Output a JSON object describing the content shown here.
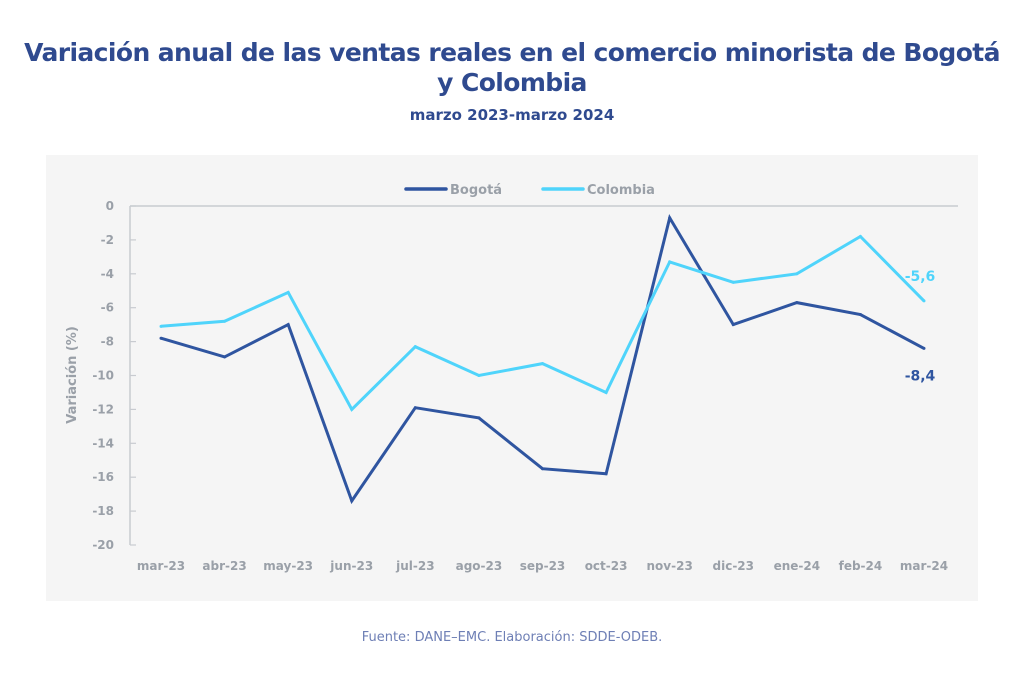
{
  "chart_data": {
    "type": "line",
    "title": "Variación anual de las ventas reales en el comercio minorista de Bogotá y Colombia",
    "title_lines": [
      "Variación anual de las ventas reales en el comercio minorista de Bogotá",
      "y Colombia"
    ],
    "subtitle": "marzo 2023-marzo 2024",
    "xlabel": "",
    "ylabel": "Variación (%)",
    "ylim": [
      -20,
      0
    ],
    "yticks": [
      0,
      -2,
      -4,
      -6,
      -8,
      -10,
      -12,
      -14,
      -16,
      -18,
      -20
    ],
    "ytick_labels": [
      "0",
      "-2",
      "-4",
      "-6",
      "-8",
      "-10",
      "-12",
      "-14",
      "-16",
      "-18",
      "-20"
    ],
    "categories": [
      "mar-23",
      "abr-23",
      "may-23",
      "jun-23",
      "jul-23",
      "ago-23",
      "sep-23",
      "oct-23",
      "nov-23",
      "dic-23",
      "ene-24",
      "feb-24",
      "mar-24"
    ],
    "grid": false,
    "legend_position": "top-center",
    "series": [
      {
        "name": "Bogotá",
        "color": "#2f55a0",
        "values": [
          -7.8,
          -8.9,
          -7.0,
          -17.4,
          -11.9,
          -12.5,
          -15.5,
          -15.8,
          -0.7,
          -7.0,
          -5.7,
          -6.4,
          -8.4
        ],
        "end_label": "-8,4"
      },
      {
        "name": "Colombia",
        "color": "#4fd4fb",
        "values": [
          -7.1,
          -6.8,
          -5.1,
          -12.0,
          -8.3,
          -10.0,
          -9.3,
          -11.0,
          -3.3,
          -4.5,
          -4.0,
          -1.8,
          -5.6
        ],
        "end_label": "-5,6"
      }
    ],
    "source": "Fuente: DANE–EMC. Elaboración: SDDE-ODEB."
  }
}
